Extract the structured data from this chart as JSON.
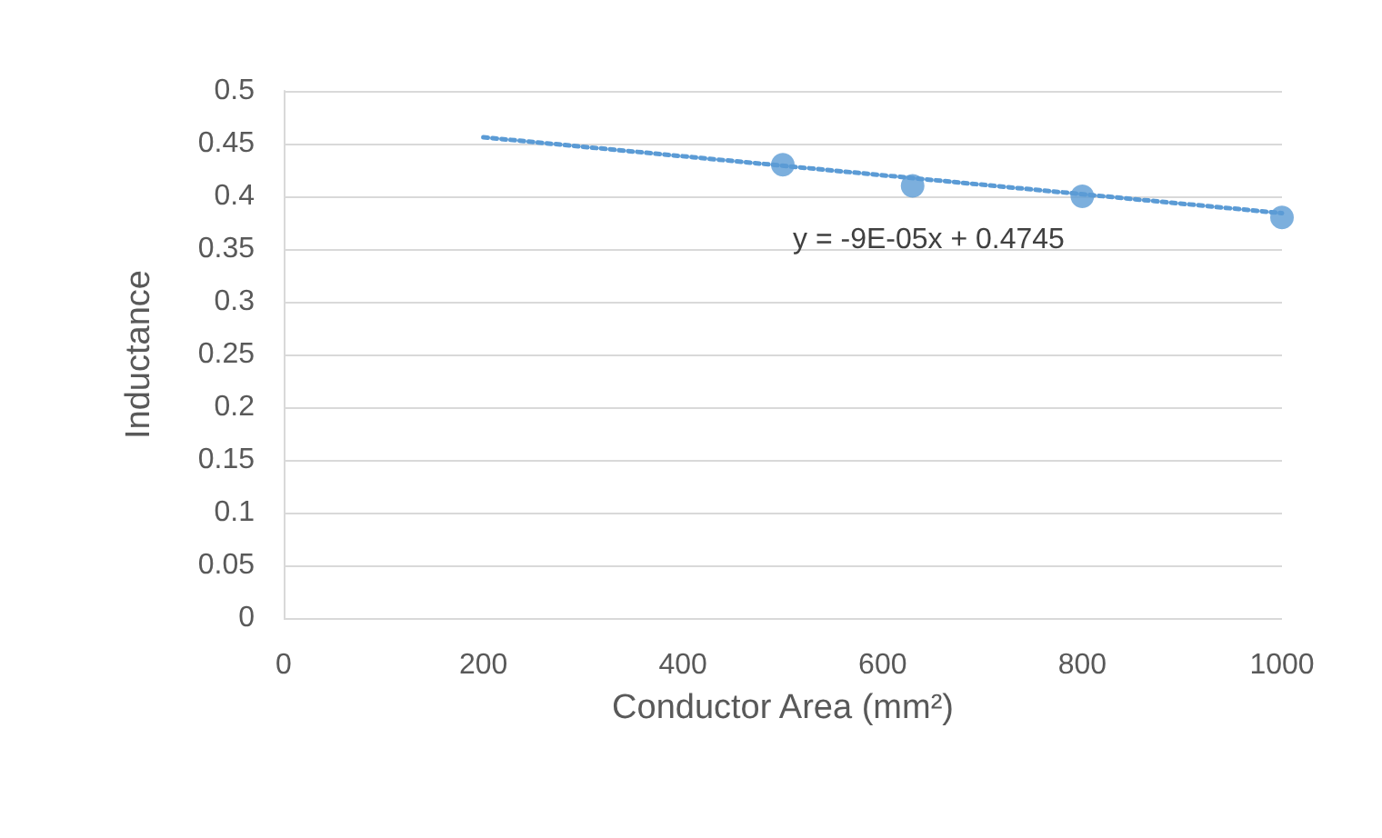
{
  "chart_data": {
    "type": "scatter",
    "xlabel": "Conductor Area (mm²)",
    "ylabel": "Inductance",
    "xlim": [
      0,
      1000
    ],
    "xticks": [
      0,
      200,
      400,
      600,
      800,
      1000
    ],
    "ylim": [
      0,
      0.5
    ],
    "yticks": [
      0,
      0.05,
      0.1,
      0.15,
      0.2,
      0.25,
      0.3,
      0.35,
      0.4,
      0.45,
      0.5
    ],
    "grid": "y",
    "marker": "circle",
    "series": [
      {
        "color": "#5b9bd5",
        "x": [
          500,
          630,
          800,
          1000
        ],
        "values": [
          0.43,
          0.41,
          0.4,
          0.38
        ]
      },
      {
        "type": "line",
        "color": "#5b9bd5",
        "line_style": "dotted",
        "marker": "none",
        "x": [
          200,
          1000
        ],
        "values": [
          0.456,
          0.384
        ]
      }
    ],
    "annotations": [
      "y = -9E-05x + 0.4745"
    ]
  }
}
